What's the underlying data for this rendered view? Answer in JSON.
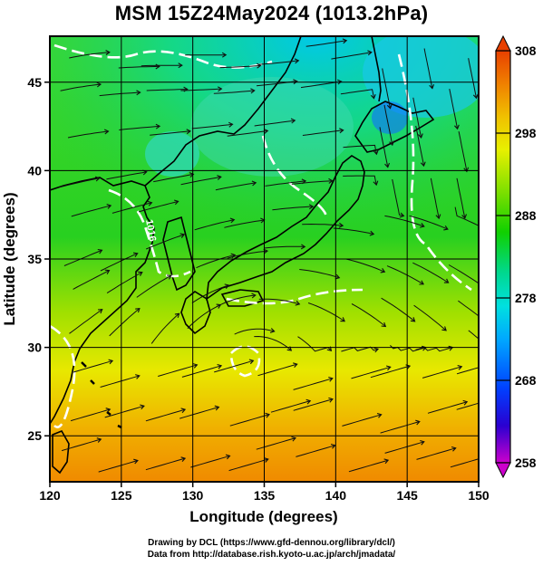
{
  "title": "MSM 15Z24May2024 (1013.2hPa)",
  "map": {
    "x_axis": {
      "title": "Longitude (degrees)",
      "min": 120,
      "max": 150,
      "ticks": [
        "120",
        "125",
        "130",
        "135",
        "140",
        "145",
        "150"
      ]
    },
    "y_axis": {
      "title": "Latitude  (degrees)",
      "min": 22.4,
      "max": 47.6,
      "ticks": [
        "25",
        "30",
        "35",
        "40",
        "45"
      ]
    },
    "gridlines": true,
    "contour_label": "1016",
    "colors": {
      "land_outline": "#000000",
      "contour": "#ffffff",
      "stream": "#101010"
    }
  },
  "colorbar": {
    "min": 258,
    "max": 308,
    "tick_labels": [
      "308",
      "298",
      "288",
      "278",
      "268",
      "258"
    ],
    "stops": [
      "#cc00cc",
      "#2a00d0",
      "#0040ff",
      "#00a8ff",
      "#00e0e0",
      "#00d890",
      "#10d000",
      "#80e000",
      "#e8f000",
      "#f0c000",
      "#f08000",
      "#e84000"
    ]
  },
  "credits": {
    "line1": "Drawing by DCL (https://www.gfd-dennou.org/library/dcl/)",
    "line2": "Data from http://database.rish.kyoto-u.ac.jp/arch/jmadata/"
  }
}
